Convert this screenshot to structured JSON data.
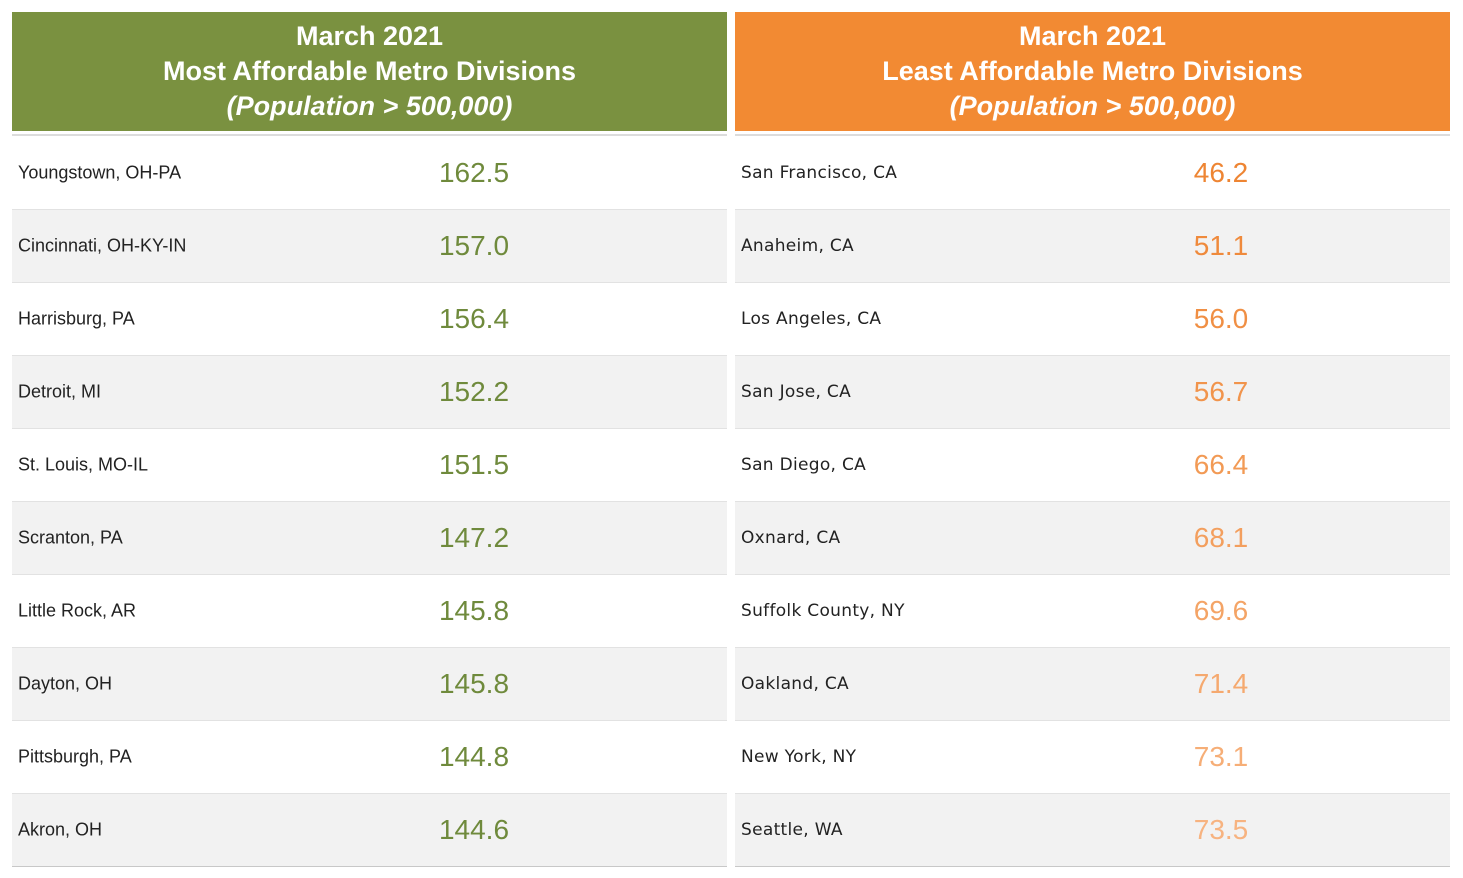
{
  "chart_data": [
    {
      "type": "table",
      "title_line1": "March 2021",
      "title_line2": "Most Affordable Metro Divisions",
      "subtitle": "(Population > 500,000)",
      "accent_color": "#7a9140",
      "categories": [
        "Youngstown, OH-PA",
        "Cincinnati, OH-KY-IN",
        "Harrisburg, PA",
        "Detroit, MI",
        "St. Louis, MO-IL",
        "Scranton, PA",
        "Little Rock, AR",
        "Dayton, OH",
        "Pittsburgh, PA",
        "Akron, OH"
      ],
      "values": [
        "162.5",
        "157.0",
        "156.4",
        "152.2",
        "151.5",
        "147.2",
        "145.8",
        "145.8",
        "144.8",
        "144.6"
      ],
      "value_colors": [
        "#6f8a3c",
        "#6f8a3c",
        "#6f8a3c",
        "#6f8a3c",
        "#6f8a3c",
        "#6f8a3c",
        "#6f8a3c",
        "#6f8a3c",
        "#6f8a3c",
        "#6f8a3c"
      ]
    },
    {
      "type": "table",
      "title_line1": "March 2021",
      "title_line2": "Least Affordable Metro Divisions",
      "subtitle": "(Population > 500,000)",
      "accent_color": "#f28a33",
      "categories": [
        "San Francisco, CA",
        "Anaheim, CA",
        "Los Angeles, CA",
        "San Jose, CA",
        "San Diego, CA",
        "Oxnard, CA",
        "Suffolk County, NY",
        "Oakland, CA",
        "New York, NY",
        "Seattle, WA"
      ],
      "values": [
        "46.2",
        "51.1",
        "56.0",
        "56.7",
        "66.4",
        "68.1",
        "69.6",
        "71.4",
        "73.1",
        "73.5"
      ],
      "value_colors": [
        "#ee8533",
        "#ef8a3c",
        "#f08f44",
        "#f1944c",
        "#f29a55",
        "#f39f5e",
        "#f4a466",
        "#f5a96f",
        "#f6ae77",
        "#f7b380"
      ]
    }
  ]
}
